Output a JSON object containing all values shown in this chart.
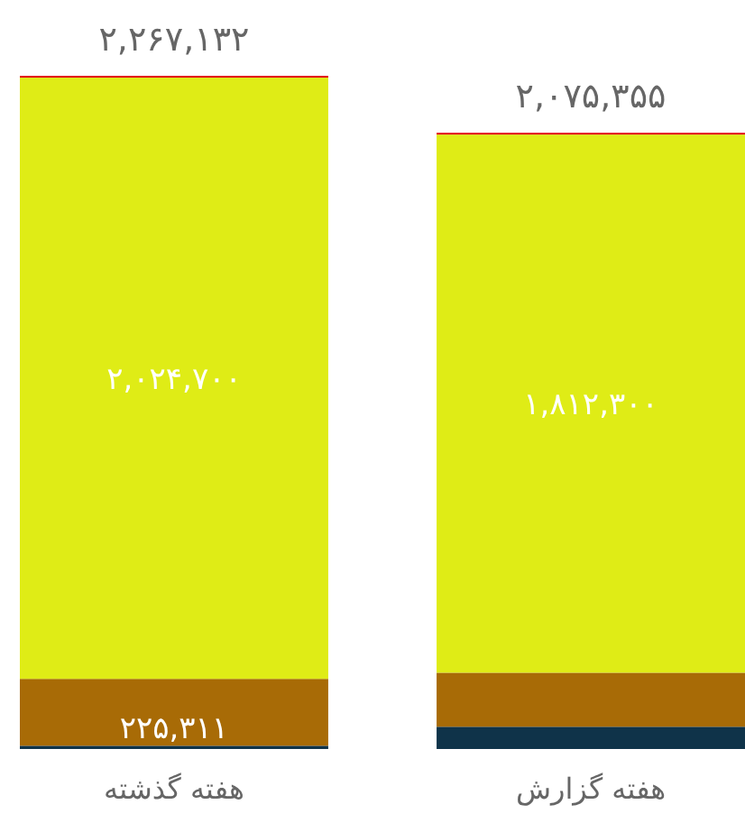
{
  "chart_data": {
    "type": "bar",
    "stacked": true,
    "categories": [
      "هفته گذشته",
      "هفته گزارش"
    ],
    "series": [
      {
        "color": "#0f3349",
        "values": [
          11000,
          75000
        ]
      },
      {
        "color": "#a86b06",
        "values": [
          225311,
          182000
        ],
        "value_labels": [
          "۲۲۵,۳۱۱",
          null
        ]
      },
      {
        "color": "#dfec16",
        "values": [
          2024700,
          1812300
        ],
        "value_labels": [
          "۲,۰۲۴,۷۰۰",
          "۱,۸۱۲,۳۰۰"
        ]
      },
      {
        "color": "#e2001a",
        "values": [
          6121,
          6055
        ]
      }
    ],
    "totals": [
      "۲,۲۶۷,۱۳۲",
      "۲,۰۷۵,۳۵۵"
    ]
  }
}
